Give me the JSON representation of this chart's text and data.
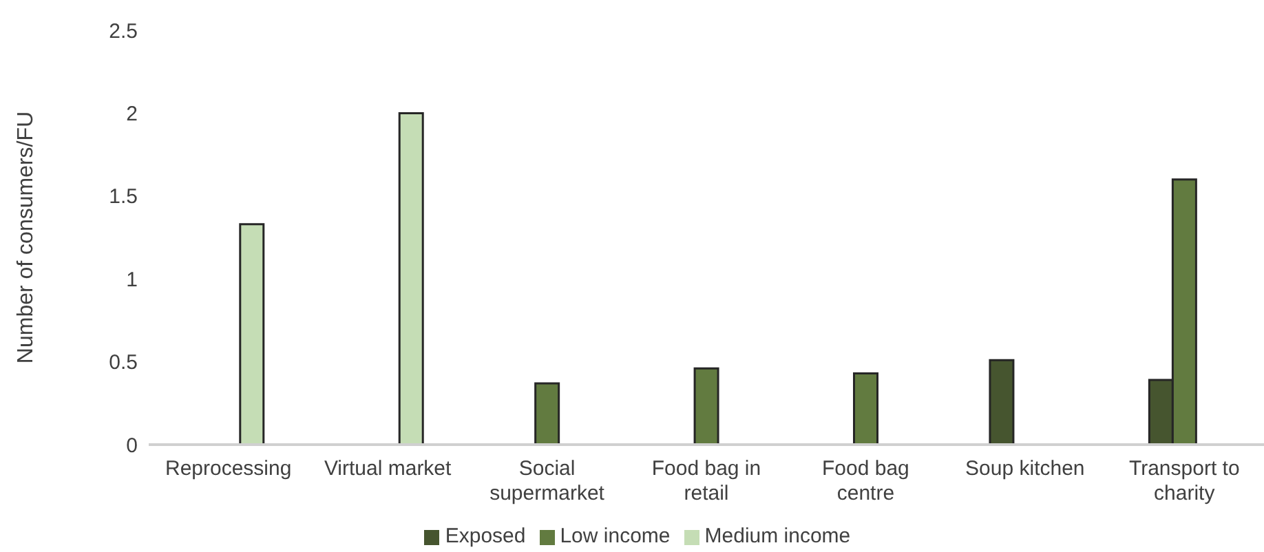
{
  "chart_data": {
    "type": "bar",
    "ylabel": "Number of consumers/FU",
    "categories": [
      "Reprocessing",
      "Virtual market",
      "Social supermarket",
      "Food bag in retail",
      "Food bag centre",
      "Soup kitchen",
      "Transport to charity"
    ],
    "series": [
      {
        "name": "Exposed",
        "color": "#46552f",
        "values": [
          null,
          null,
          null,
          null,
          null,
          0.51,
          0.39
        ]
      },
      {
        "name": "Low income",
        "color": "#627b40",
        "values": [
          null,
          null,
          0.37,
          0.46,
          0.43,
          null,
          1.6
        ]
      },
      {
        "name": "Medium income",
        "color": "#c5ddb5",
        "values": [
          1.33,
          2,
          null,
          null,
          null,
          null,
          null
        ]
      }
    ],
    "ylim": [
      0,
      2.5
    ],
    "yticks": [
      0,
      0.5,
      1,
      1.5,
      2,
      2.5
    ],
    "grid": false,
    "legend": "bottom"
  }
}
